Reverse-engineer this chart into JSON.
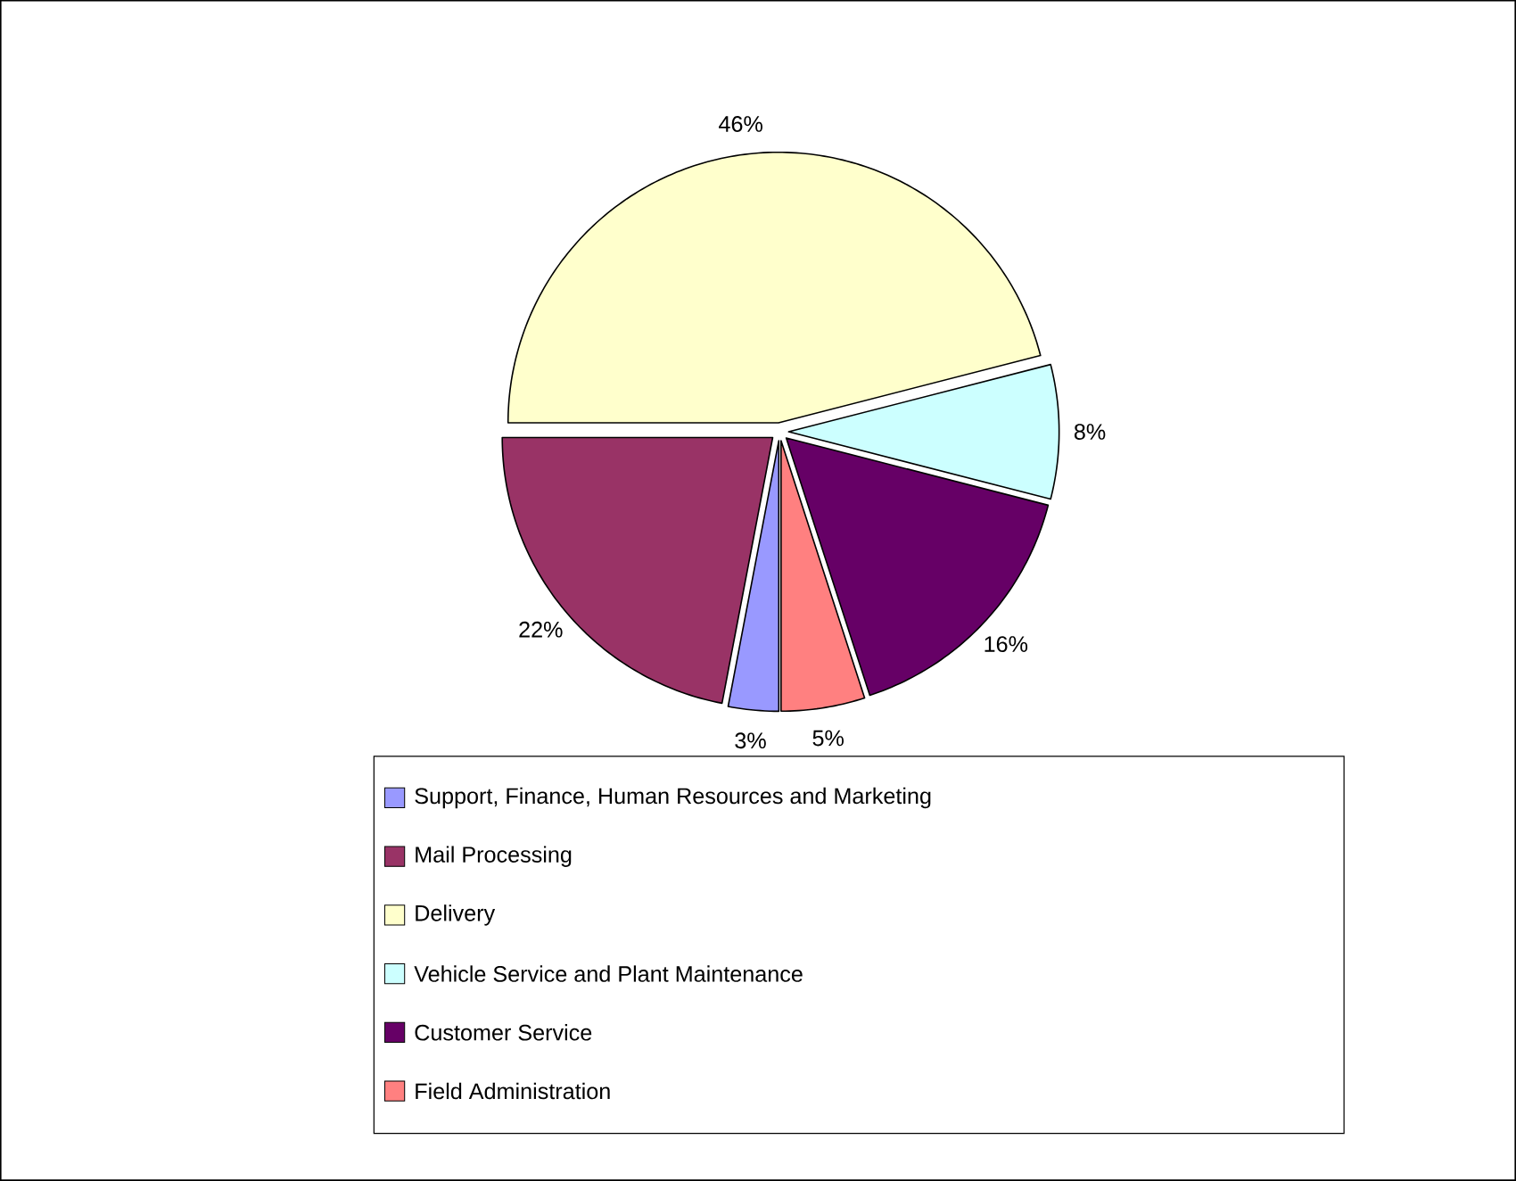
{
  "chart_data": {
    "type": "pie",
    "categories": [
      "Support, Finance, Human Resources and Marketing",
      "Mail Processing",
      "Delivery",
      "Vehicle Service and Plant Maintenance",
      "Customer Service",
      "Field Administration"
    ],
    "values": [
      3,
      22,
      46,
      8,
      16,
      5
    ],
    "colors": [
      "#9999ff",
      "#993366",
      "#ffffcc",
      "#ccffff",
      "#660066",
      "#ff8080"
    ],
    "value_labels": [
      "3%",
      "22%",
      "46%",
      "8%",
      "16%",
      "5%"
    ],
    "legend": "bottom"
  }
}
